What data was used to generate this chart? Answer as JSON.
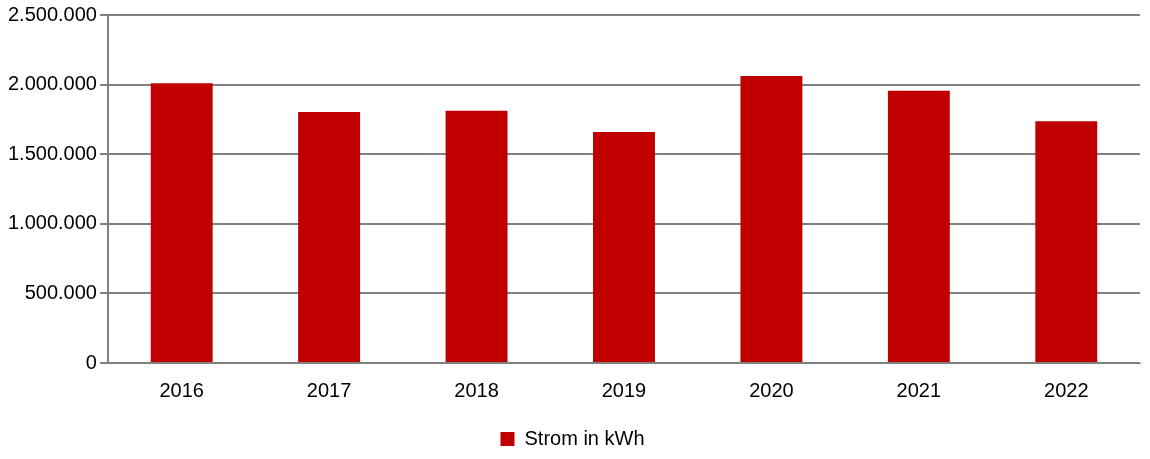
{
  "chart_data": {
    "type": "bar",
    "categories": [
      "2016",
      "2017",
      "2018",
      "2019",
      "2020",
      "2021",
      "2022"
    ],
    "series": [
      {
        "name": "Strom in kWh",
        "color": "#c00000",
        "values": [
          2010000,
          1803000,
          1812000,
          1659000,
          2062000,
          1956000,
          1736000
        ]
      }
    ],
    "ylim": [
      0,
      2500000
    ],
    "yticks": [
      {
        "value": 0,
        "label": "0"
      },
      {
        "value": 500000,
        "label": "500.000"
      },
      {
        "value": 1000000,
        "label": "1.000.000"
      },
      {
        "value": 1500000,
        "label": "1.500.000"
      },
      {
        "value": 2000000,
        "label": "2.000.000"
      },
      {
        "value": 2500000,
        "label": "2.500.000"
      }
    ],
    "grid": "y",
    "legend": "bottom"
  }
}
